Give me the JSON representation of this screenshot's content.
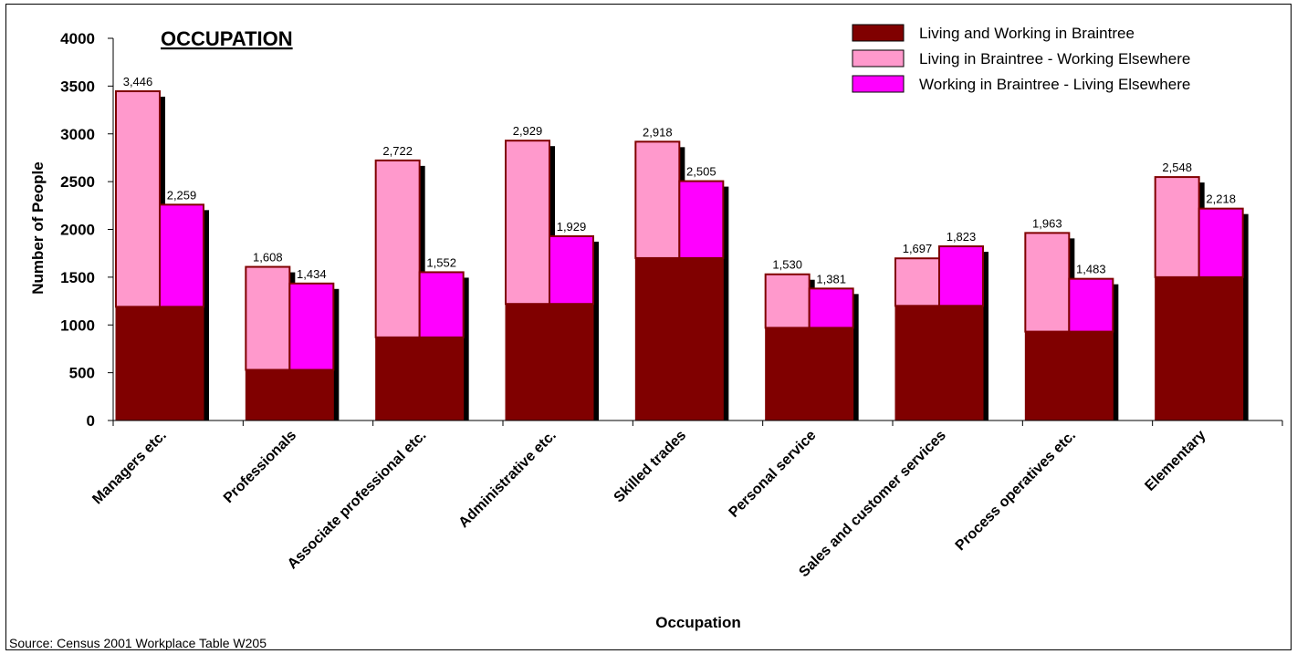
{
  "chart_data": {
    "type": "bar",
    "title": "OCCUPATION",
    "xlabel": "Occupation",
    "ylabel": "Number of People",
    "ylim": [
      0,
      4000
    ],
    "yticks": [
      0,
      500,
      1000,
      1500,
      2000,
      2500,
      3000,
      3500,
      4000
    ],
    "grid": false,
    "legend_position": "top-right",
    "source": "Source: Census 2001 Workplace Table W205",
    "categories": [
      "Managers etc.",
      "Professionals",
      "Associate professional etc.",
      "Administrative etc.",
      "Skilled trades",
      "Personal service",
      "Sales and customer services",
      "Process operatives etc.",
      "Elementary"
    ],
    "series": [
      {
        "name": "Living and Working in Braintree",
        "color": "#800000",
        "values": [
          1190,
          530,
          870,
          1220,
          1700,
          970,
          1200,
          930,
          1500
        ]
      },
      {
        "name": "Living in Braintree - Working Elsewhere",
        "color": "#ff99cc",
        "values": [
          2256,
          1078,
          1852,
          1709,
          1218,
          560,
          497,
          1033,
          1048
        ]
      },
      {
        "name": "Working in Braintree - Living Elsewhere",
        "color": "#ff00ff",
        "values": [
          1069,
          904,
          682,
          709,
          805,
          411,
          623,
          553,
          718
        ]
      }
    ],
    "stack_totals": {
      "resident": [
        3446,
        1608,
        2722,
        2929,
        2918,
        1530,
        1697,
        1963,
        2548
      ],
      "workplace": [
        2259,
        1434,
        1552,
        1929,
        2505,
        1381,
        1823,
        1483,
        2218
      ]
    },
    "total_labels": {
      "resident": [
        "3,446",
        "1,608",
        "2,722",
        "2,929",
        "2,918",
        "1,530",
        "1,697",
        "1,963",
        "2,548"
      ],
      "workplace": [
        "2,259",
        "1,434",
        "1,552",
        "1,929",
        "2,505",
        "1,381",
        "1,823",
        "1,483",
        "2,218"
      ]
    },
    "colors": {
      "edge": "#800000",
      "shadow": "#000000",
      "axis": "#000000"
    }
  }
}
